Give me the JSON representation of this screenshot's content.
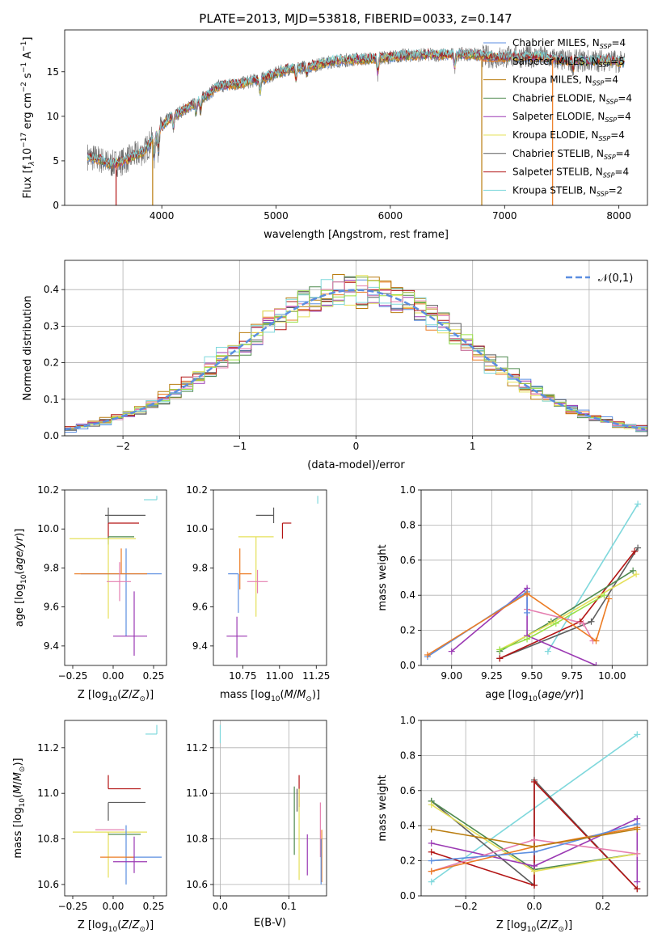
{
  "figure": {
    "title": "PLATE=2013, MJD=53818, FIBERID=0033, z=0.147"
  },
  "colors": {
    "Chabrier MILES": "#5b8ee0",
    "Salpeter MILES": "#ec7c24",
    "Kroupa MILES": "#ba7d10",
    "Chabrier ELODIE": "#4e8a4e",
    "Salpeter ELODIE": "#9b39b3",
    "Kroupa ELODIE": "#e5e05a",
    "Chabrier STELIB": "#5e5e5e",
    "Salpeter STELIB": "#b31414",
    "Kroupa STELIB": "#7fd8dc",
    "extra_pink": "#e57fb0",
    "extra_lime": "#9ae046",
    "normal": "#5b8ee0"
  },
  "chart_data": [
    {
      "id": "spectrum",
      "type": "line",
      "xlabel": "wavelength [Angstrom, rest frame]",
      "ylabel": "Flux [f",
      "xlim": [
        3150,
        8250
      ],
      "ylim": [
        0,
        19.7
      ],
      "xticks": [
        4000,
        5000,
        6000,
        7000,
        8000
      ],
      "yticks": [
        0,
        5,
        10,
        15
      ],
      "grid": false,
      "legend_position": "top-right",
      "legend": [
        {
          "label": "Chabrier MILES, N",
          "n": "4",
          "color_key": "Chabrier MILES"
        },
        {
          "label": "Salpeter MILES, N",
          "n": "5",
          "color_key": "Salpeter MILES"
        },
        {
          "label": "Kroupa MILES, N",
          "n": "4",
          "color_key": "Kroupa MILES"
        },
        {
          "label": "Chabrier ELODIE, N",
          "n": "4",
          "color_key": "Chabrier ELODIE"
        },
        {
          "label": "Salpeter ELODIE, N",
          "n": "4",
          "color_key": "Salpeter ELODIE"
        },
        {
          "label": "Kroupa ELODIE, N",
          "n": "4",
          "color_key": "Kroupa ELODIE"
        },
        {
          "label": "Chabrier STELIB, N",
          "n": "4",
          "color_key": "Chabrier STELIB"
        },
        {
          "label": "Salpeter STELIB, N",
          "n": "4",
          "color_key": "Salpeter STELIB"
        },
        {
          "label": "Kroupa STELIB, N",
          "n": "2",
          "color_key": "Kroupa STELIB"
        }
      ],
      "series_anchors": {
        "x": [
          3350,
          3450,
          3550,
          3650,
          3750,
          3850,
          3950,
          4050,
          4200,
          4300,
          4500,
          4700,
          4900,
          5100,
          5300,
          5500,
          5700,
          5900,
          6100,
          6300,
          6500,
          6700,
          6900,
          7100,
          7300,
          7500,
          7700,
          7900,
          8050
        ],
        "y": [
          5.5,
          5.2,
          4.6,
          4.9,
          5.5,
          6.1,
          8.0,
          9.6,
          10.8,
          11.5,
          13.4,
          13.7,
          14.3,
          15.3,
          15.6,
          16.2,
          16.4,
          16.5,
          16.8,
          16.9,
          16.9,
          17.0,
          16.6,
          16.7,
          16.7,
          16.3,
          16.2,
          16.3,
          16.0
        ]
      },
      "model_dropouts": [
        {
          "x": 3600,
          "model": "Salpeter STELIB"
        },
        {
          "x": 3920,
          "model": "Kroupa MILES"
        },
        {
          "x": 6800,
          "model": "Kroupa MILES"
        },
        {
          "x": 7420,
          "model": "Salpeter MILES"
        }
      ]
    },
    {
      "id": "residual-histogram",
      "type": "histogram",
      "xlabel": "(data-model)/error",
      "ylabel": "Normed distribution",
      "xlim": [
        -2.5,
        2.5
      ],
      "ylim": [
        0,
        0.48
      ],
      "xticks": [
        -2,
        -1,
        0,
        1,
        2
      ],
      "yticks": [
        0.0,
        0.1,
        0.2,
        0.3,
        0.4
      ],
      "grid": true,
      "bin_width": 0.1,
      "legend_position": "top-right",
      "reference_curve": {
        "label": "𝒩(0,1)",
        "mean": 0,
        "sigma": 1,
        "style": "dashed"
      },
      "model_order": [
        "Chabrier MILES",
        "Salpeter MILES",
        "Kroupa MILES",
        "Chabrier ELODIE",
        "Salpeter ELODIE",
        "Kroupa ELODIE",
        "Chabrier STELIB",
        "Salpeter STELIB",
        "Kroupa STELIB"
      ]
    },
    {
      "id": "age-vs-metallicity",
      "type": "errorbar",
      "xlabel": "Z [log",
      "ylabel": "age  [log",
      "xlim": [
        -0.3,
        0.33
      ],
      "ylim": [
        9.3,
        10.2
      ],
      "xticks": [
        -0.25,
        0.0,
        0.25
      ],
      "yticks": [
        9.4,
        9.6,
        9.8,
        10.0,
        10.2
      ],
      "grid": false,
      "points": [
        {
          "model": "Kroupa STELIB",
          "x": 0.27,
          "y": 10.15,
          "xerr": [
            0.08,
            0.0
          ],
          "yerr": [
            0.0,
            0.02
          ]
        },
        {
          "model": "Chabrier STELIB",
          "x": -0.03,
          "y": 10.07,
          "xerr": [
            0.02,
            0.23
          ],
          "yerr": [
            0.04,
            0.04
          ]
        },
        {
          "model": "Salpeter STELIB",
          "x": -0.03,
          "y": 10.03,
          "xerr": [
            0.0,
            0.19
          ],
          "yerr": [
            0.08,
            0.0
          ]
        },
        {
          "model": "Chabrier ELODIE",
          "x": -0.03,
          "y": 9.96,
          "xerr": [
            0.0,
            0.16
          ],
          "yerr": [
            0.04,
            0.0
          ]
        },
        {
          "model": "Kroupa ELODIE",
          "x": -0.03,
          "y": 9.95,
          "xerr": [
            0.24,
            0.17
          ],
          "yerr": [
            0.41,
            0.0
          ]
        },
        {
          "model": "Chabrier MILES",
          "x": 0.08,
          "y": 9.77,
          "xerr": [
            0.28,
            0.22
          ],
          "yerr": [
            0.32,
            0.13
          ]
        },
        {
          "model": "Salpeter MILES",
          "x": 0.05,
          "y": 9.77,
          "xerr": [
            0.29,
            0.16
          ],
          "yerr": [
            0.0,
            0.13
          ]
        },
        {
          "model": "extra_pink",
          "x": 0.04,
          "y": 9.73,
          "xerr": [
            0.08,
            0.07
          ],
          "yerr": [
            0.1,
            0.1
          ]
        },
        {
          "model": "Salpeter ELODIE",
          "x": 0.13,
          "y": 9.45,
          "xerr": [
            0.13,
            0.08
          ],
          "yerr": [
            0.1,
            0.23
          ]
        }
      ]
    },
    {
      "id": "age-vs-mass",
      "type": "errorbar",
      "xlabel": "mass [log",
      "ylabel": "",
      "xlim": [
        10.55,
        11.32
      ],
      "ylim": [
        9.3,
        10.2
      ],
      "xticks": [
        10.75,
        11.0,
        11.25
      ],
      "yticks": [
        9.4,
        9.6,
        9.8,
        10.0,
        10.2
      ],
      "grid": false,
      "points": [
        {
          "model": "Kroupa STELIB",
          "x": 11.26,
          "y": 10.15,
          "xerr": [
            0.0,
            0.0
          ],
          "yerr": [
            0.02,
            0.02
          ]
        },
        {
          "model": "Chabrier STELIB",
          "x": 10.96,
          "y": 10.07,
          "xerr": [
            0.12,
            0.0
          ],
          "yerr": [
            0.04,
            0.04
          ]
        },
        {
          "model": "Salpeter STELIB",
          "x": 11.02,
          "y": 10.03,
          "xerr": [
            0.0,
            0.06
          ],
          "yerr": [
            0.08,
            0.0
          ]
        },
        {
          "model": "Kroupa ELODIE",
          "x": 10.84,
          "y": 9.96,
          "xerr": [
            0.12,
            0.12
          ],
          "yerr": [
            0.41,
            0.0
          ]
        },
        {
          "model": "Chabrier MILES",
          "x": 10.72,
          "y": 9.77,
          "xerr": [
            0.07,
            0.0
          ],
          "yerr": [
            0.2,
            0.0
          ]
        },
        {
          "model": "Salpeter MILES",
          "x": 10.73,
          "y": 9.77,
          "xerr": [
            0.0,
            0.08
          ],
          "yerr": [
            0.08,
            0.13
          ]
        },
        {
          "model": "extra_pink",
          "x": 10.85,
          "y": 9.73,
          "xerr": [
            0.07,
            0.07
          ],
          "yerr": [
            0.06,
            0.06
          ]
        },
        {
          "model": "Salpeter ELODIE",
          "x": 10.71,
          "y": 9.45,
          "xerr": [
            0.07,
            0.07
          ],
          "yerr": [
            0.11,
            0.1
          ]
        }
      ]
    },
    {
      "id": "mass-weight-vs-age",
      "type": "line",
      "xlabel": "age  [log",
      "ylabel": "mass weight",
      "xlim": [
        8.81,
        10.22
      ],
      "ylim": [
        0,
        1.0
      ],
      "xticks": [
        9.0,
        9.25,
        9.5,
        9.75,
        10.0
      ],
      "yticks": [
        0.0,
        0.2,
        0.4,
        0.6,
        0.8,
        1.0
      ],
      "grid": true,
      "series": [
        {
          "model": "Kroupa STELIB",
          "x": [
            9.6,
            10.16
          ],
          "y": [
            0.08,
            0.92
          ]
        },
        {
          "model": "Chabrier STELIB",
          "x": [
            9.3,
            9.87,
            10.16
          ],
          "y": [
            0.04,
            0.25,
            0.67
          ]
        },
        {
          "model": "Salpeter STELIB",
          "x": [
            9.3,
            9.8,
            10.14
          ],
          "y": [
            0.04,
            0.25,
            0.65
          ]
        },
        {
          "model": "Chabrier ELODIE",
          "x": [
            9.3,
            9.62,
            10.13
          ],
          "y": [
            0.08,
            0.25,
            0.54
          ]
        },
        {
          "model": "Kroupa ELODIE",
          "x": [
            9.3,
            9.62,
            10.15
          ],
          "y": [
            0.09,
            0.24,
            0.52
          ]
        },
        {
          "model": "Salpeter ELODIE",
          "x": [
            9.0,
            9.47,
            9.47,
            9.9
          ],
          "y": [
            0.08,
            0.44,
            0.17,
            0.0
          ]
        },
        {
          "model": "extra_lime",
          "x": [
            9.3,
            9.47,
            9.65,
            9.95
          ],
          "y": [
            0.09,
            0.15,
            0.24,
            0.4
          ]
        },
        {
          "model": "extra_pink",
          "x": [
            9.47,
            9.82,
            9.88
          ],
          "y": [
            0.32,
            0.24,
            0.14
          ]
        },
        {
          "model": "Chabrier MILES",
          "x": [
            8.85,
            9.47,
            9.47
          ],
          "y": [
            0.05,
            0.42,
            0.3
          ]
        },
        {
          "model": "Salpeter MILES",
          "x": [
            8.85,
            9.47,
            9.9,
            9.98
          ],
          "y": [
            0.06,
            0.41,
            0.14,
            0.38
          ]
        }
      ]
    },
    {
      "id": "mass-vs-metallicity",
      "type": "errorbar",
      "xlabel": "Z [log",
      "ylabel": "mass [log",
      "xlim": [
        -0.3,
        0.33
      ],
      "ylim": [
        10.55,
        11.32
      ],
      "xticks": [
        -0.25,
        0.0,
        0.25
      ],
      "yticks": [
        10.6,
        10.8,
        11.0,
        11.2
      ],
      "grid": false,
      "points": [
        {
          "model": "Kroupa STELIB",
          "x": 0.27,
          "y": 11.26,
          "xerr": [
            0.07,
            0.0
          ],
          "yerr": [
            0.0,
            0.04
          ]
        },
        {
          "model": "Salpeter STELIB",
          "x": -0.03,
          "y": 11.02,
          "xerr": [
            0.0,
            0.2
          ],
          "yerr": [
            0.0,
            0.06
          ]
        },
        {
          "model": "Chabrier STELIB",
          "x": -0.03,
          "y": 10.96,
          "xerr": [
            0.0,
            0.23
          ],
          "yerr": [
            0.08,
            0.0
          ]
        },
        {
          "model": "extra_pink",
          "x": -0.03,
          "y": 10.84,
          "xerr": [
            0.08,
            0.1
          ],
          "yerr": [
            0.0,
            0.0
          ]
        },
        {
          "model": "Kroupa ELODIE",
          "x": -0.03,
          "y": 10.83,
          "xerr": [
            0.22,
            0.24
          ],
          "yerr": [
            0.2,
            0.0
          ]
        },
        {
          "model": "Chabrier ELODIE",
          "x": -0.03,
          "y": 10.82,
          "xerr": [
            0.0,
            0.2
          ],
          "yerr": [
            0.0,
            0.0
          ]
        },
        {
          "model": "Chabrier MILES",
          "x": 0.08,
          "y": 10.72,
          "xerr": [
            0.0,
            0.22
          ],
          "yerr": [
            0.12,
            0.14
          ]
        },
        {
          "model": "Salpeter MILES",
          "x": 0.0,
          "y": 10.72,
          "xerr": [
            0.08,
            0.13
          ],
          "yerr": [
            0.0,
            0.0
          ]
        },
        {
          "model": "Salpeter ELODIE",
          "x": 0.13,
          "y": 10.7,
          "xerr": [
            0.13,
            0.08
          ],
          "yerr": [
            0.05,
            0.11
          ]
        }
      ]
    },
    {
      "id": "mass-vs-extinction",
      "type": "errorbar",
      "xlabel": "E(B-V)",
      "ylabel": "",
      "xlim": [
        -0.01,
        0.155
      ],
      "ylim": [
        10.55,
        11.32
      ],
      "xticks": [
        0.0,
        0.1
      ],
      "yticks": [
        10.6,
        10.8,
        11.0,
        11.2
      ],
      "grid": true,
      "points": [
        {
          "model": "Kroupa STELIB",
          "x": 0.0,
          "y": 11.26,
          "xerr": [
            0.0,
            0.0
          ],
          "yerr": [
            0.04,
            0.04
          ]
        },
        {
          "model": "Salpeter STELIB",
          "x": 0.115,
          "y": 11.0,
          "xerr": [
            0.0,
            0.0
          ],
          "yerr": [
            0.06,
            0.08
          ]
        },
        {
          "model": "Chabrier STELIB",
          "x": 0.112,
          "y": 10.94,
          "xerr": [
            0.0,
            0.0
          ],
          "yerr": [
            0.02,
            0.08
          ]
        },
        {
          "model": "Chabrier ELODIE",
          "x": 0.108,
          "y": 10.83,
          "xerr": [
            0.0,
            0.0
          ],
          "yerr": [
            0.1,
            0.2
          ]
        },
        {
          "model": "Kroupa ELODIE",
          "x": 0.115,
          "y": 10.82,
          "xerr": [
            0.0,
            0.0
          ],
          "yerr": [
            0.2,
            0.2
          ]
        },
        {
          "model": "Salpeter ELODIE",
          "x": 0.127,
          "y": 10.72,
          "xerr": [
            0.0,
            0.0
          ],
          "yerr": [
            0.08,
            0.1
          ]
        },
        {
          "model": "extra_pink",
          "x": 0.146,
          "y": 10.84,
          "xerr": [
            0.0,
            0.0
          ],
          "yerr": [
            0.12,
            0.12
          ]
        },
        {
          "model": "Salpeter MILES",
          "x": 0.148,
          "y": 10.73,
          "xerr": [
            0.0,
            0.0
          ],
          "yerr": [
            0.12,
            0.11
          ]
        },
        {
          "model": "Chabrier MILES",
          "x": 0.147,
          "y": 10.7,
          "xerr": [
            0.0,
            0.0
          ],
          "yerr": [
            0.1,
            0.1
          ]
        }
      ]
    },
    {
      "id": "mass-weight-vs-metallicity",
      "type": "line",
      "xlabel": "Z [log",
      "ylabel": "mass weight",
      "xlim": [
        -0.33,
        0.33
      ],
      "ylim": [
        0,
        1.0
      ],
      "xticks": [
        -0.2,
        0.0,
        0.2
      ],
      "yticks": [
        0.0,
        0.2,
        0.4,
        0.6,
        0.8,
        1.0
      ],
      "grid": true,
      "series": [
        {
          "model": "Kroupa STELIB",
          "x": [
            -0.3,
            0.3
          ],
          "y": [
            0.08,
            0.92
          ]
        },
        {
          "model": "Chabrier STELIB",
          "x": [
            -0.3,
            0.0,
            0.0,
            0.3
          ],
          "y": [
            0.54,
            0.06,
            0.66,
            0.04
          ]
        },
        {
          "model": "Salpeter STELIB",
          "x": [
            -0.3,
            0.0,
            0.0,
            0.3
          ],
          "y": [
            0.25,
            0.06,
            0.65,
            0.04
          ]
        },
        {
          "model": "Chabrier ELODIE",
          "x": [
            -0.3,
            0.0,
            0.3
          ],
          "y": [
            0.54,
            0.15,
            0.24
          ]
        },
        {
          "model": "Kroupa ELODIE",
          "x": [
            -0.3,
            0.0,
            0.3
          ],
          "y": [
            0.52,
            0.14,
            0.24
          ]
        },
        {
          "model": "Salpeter ELODIE",
          "x": [
            -0.3,
            0.0,
            0.3,
            0.3
          ],
          "y": [
            0.3,
            0.17,
            0.44,
            0.08
          ]
        },
        {
          "model": "extra_pink",
          "x": [
            -0.3,
            0.0,
            0.3
          ],
          "y": [
            0.14,
            0.32,
            0.24
          ]
        },
        {
          "model": "Salpeter MILES",
          "x": [
            -0.3,
            0.0,
            0.3
          ],
          "y": [
            0.14,
            0.28,
            0.39
          ]
        },
        {
          "model": "Chabrier MILES",
          "x": [
            -0.3,
            0.0,
            0.3
          ],
          "y": [
            0.2,
            0.25,
            0.41
          ]
        },
        {
          "model": "Kroupa MILES",
          "x": [
            -0.3,
            0.0,
            0.3
          ],
          "y": [
            0.38,
            0.28,
            0.38
          ]
        }
      ]
    }
  ]
}
